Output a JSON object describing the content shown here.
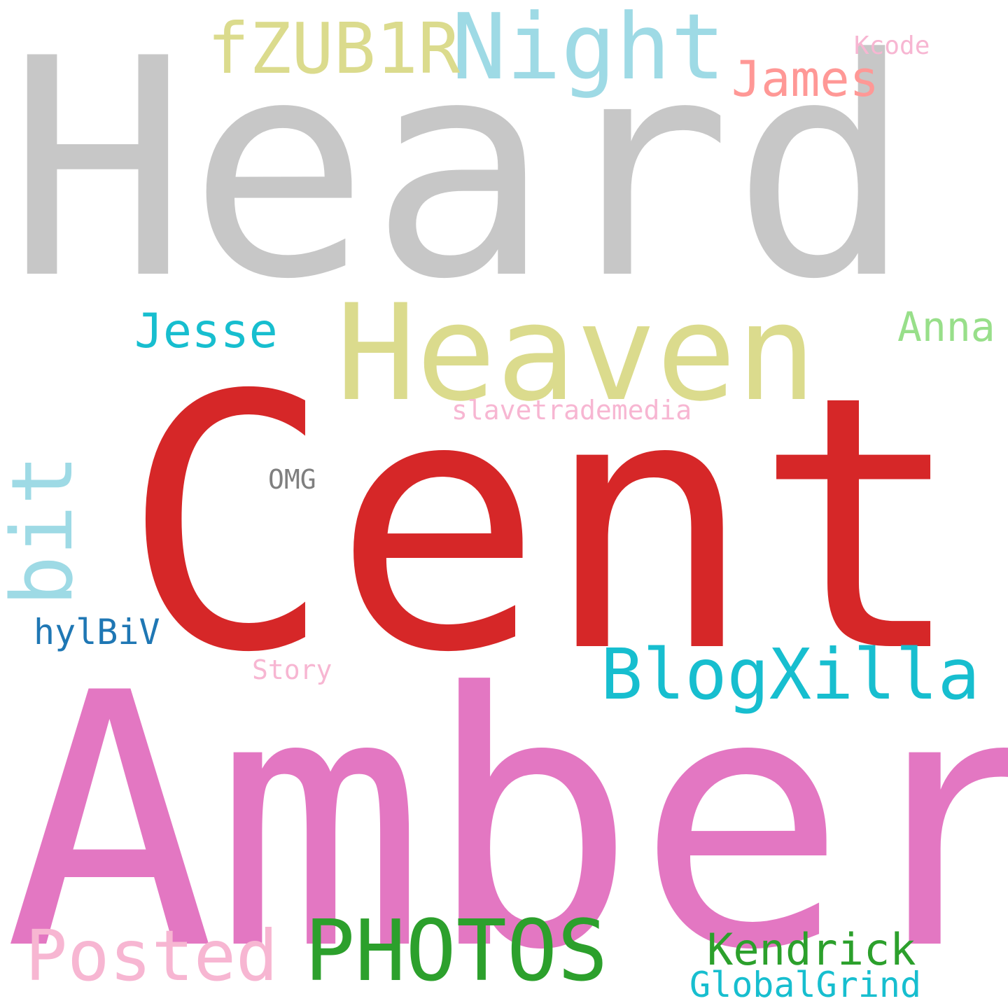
{
  "cloud": {
    "words": [
      {
        "id": "heard",
        "text": "Heard",
        "color": "#c7c7c7"
      },
      {
        "id": "cent",
        "text": "Cent",
        "color": "#d62728"
      },
      {
        "id": "amber",
        "text": "Amber",
        "color": "#e377c2"
      },
      {
        "id": "heaven",
        "text": "Heaven",
        "color": "#dbdb8d"
      },
      {
        "id": "night",
        "text": "Night",
        "color": "#9edae5"
      },
      {
        "id": "fzub1r",
        "text": "fZUB1R",
        "color": "#dbdb8d"
      },
      {
        "id": "james",
        "text": "James",
        "color": "#ff9896"
      },
      {
        "id": "kcode",
        "text": "Kcode",
        "color": "#f7b6d2"
      },
      {
        "id": "jesse",
        "text": "Jesse",
        "color": "#17becf"
      },
      {
        "id": "anna",
        "text": "Anna",
        "color": "#98df8a"
      },
      {
        "id": "slavetrademedia",
        "text": "slavetrademedia",
        "color": "#f7b6d2"
      },
      {
        "id": "omg",
        "text": "OMG",
        "color": "#7f7f7f"
      },
      {
        "id": "bit",
        "text": "bit",
        "color": "#9edae5"
      },
      {
        "id": "hylbiv",
        "text": "hylBiV",
        "color": "#1f77b4"
      },
      {
        "id": "blogxilla",
        "text": "BlogXilla",
        "color": "#17becf"
      },
      {
        "id": "story",
        "text": "Story",
        "color": "#f7b6d2"
      },
      {
        "id": "posted",
        "text": "Posted",
        "color": "#f7b6d2"
      },
      {
        "id": "photos",
        "text": "PHOTOS",
        "color": "#2ca02c"
      },
      {
        "id": "kendrick",
        "text": "Kendrick",
        "color": "#2ca02c"
      },
      {
        "id": "globalgrind",
        "text": "GlobalGrind",
        "color": "#17becf"
      }
    ]
  }
}
